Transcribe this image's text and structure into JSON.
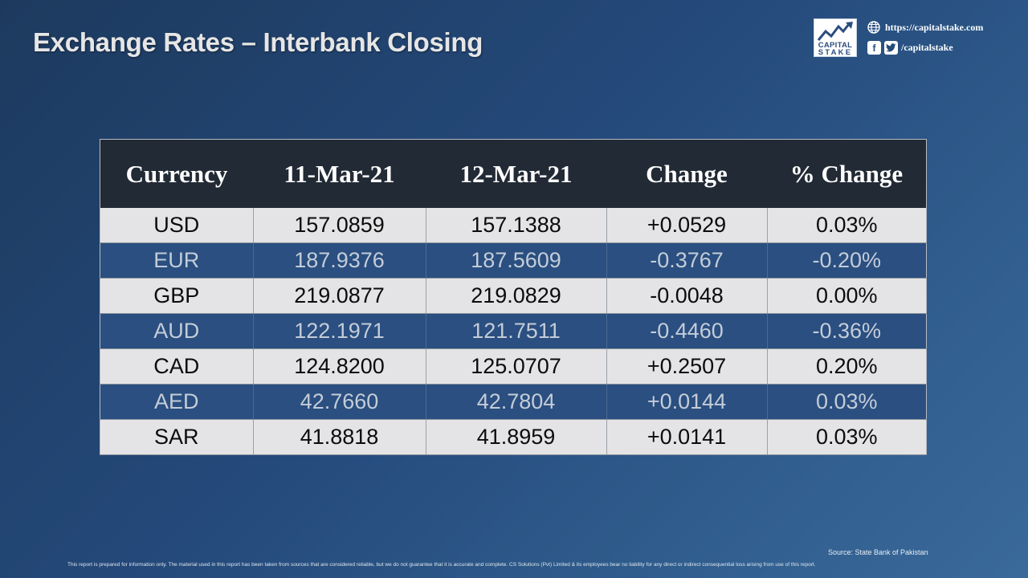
{
  "header": {
    "title": "Exchange Rates – Interbank Closing"
  },
  "brand": {
    "logo_line1": "CAPITAL",
    "logo_line2": "STAKE",
    "website": "https://capitalstake.com",
    "social_handle": "/capitalstake",
    "icons": [
      "chart-arrow-icon",
      "globe-icon",
      "facebook-icon",
      "twitter-icon"
    ]
  },
  "table": {
    "headers": [
      "Currency",
      "11-Mar-21",
      "12-Mar-21",
      "Change",
      "% Change"
    ],
    "rows": [
      [
        "USD",
        "157.0859",
        "157.1388",
        "+0.0529",
        "0.03%"
      ],
      [
        "EUR",
        "187.9376",
        "187.5609",
        "-0.3767",
        "-0.20%"
      ],
      [
        "GBP",
        "219.0877",
        "219.0829",
        "-0.0048",
        "0.00%"
      ],
      [
        "AUD",
        "122.1971",
        "121.7511",
        "-0.4460",
        "-0.36%"
      ],
      [
        "CAD",
        "124.8200",
        "125.0707",
        "+0.2507",
        "0.20%"
      ],
      [
        "AED",
        "42.7660",
        "42.7804",
        "+0.0144",
        "0.03%"
      ],
      [
        "SAR",
        "41.8818",
        "41.8959",
        "+0.0141",
        "0.03%"
      ]
    ]
  },
  "footer": {
    "source": "Source: State Bank of Pakistan",
    "disclaimer": "This report is prepared for information only. The material used in this report has been taken from sources that are considered reliable, but we do not guarantee that it is accurate and complete. CS Solutions (Pvt) Limited & its employees bear no liability for any direct or indirect consequential loss arising from use of this report."
  },
  "colors": {
    "background_start": "#1d3a5e",
    "background_end": "#3a6a9a",
    "header_row": "#222a35",
    "row_light": "#e4e4e6",
    "row_dark": "#2a4f80"
  }
}
